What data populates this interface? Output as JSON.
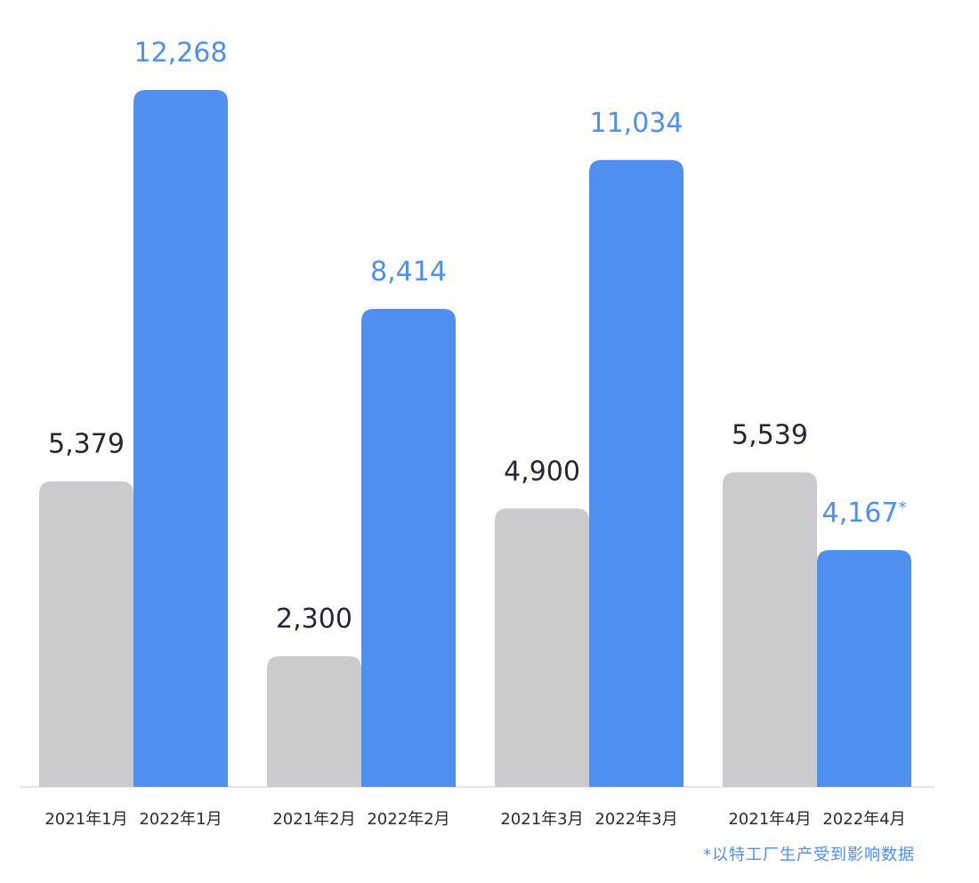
{
  "colors": {
    "series_2021": "#cbcbcd",
    "series_2022": "#4f8ff0",
    "value_2021": "#262636",
    "value_2022": "#4f8ff0",
    "axis_label": "#2a2a3a",
    "baseline": "#e6e6ea"
  },
  "chart_data": {
    "type": "bar",
    "groups": [
      {
        "bars": [
          {
            "category": "2021年1月",
            "value": 5379,
            "label": "5,379"
          },
          {
            "category": "2022年1月",
            "value": 12268,
            "label": "12,268"
          }
        ]
      },
      {
        "bars": [
          {
            "category": "2021年2月",
            "value": 2300,
            "label": "2,300"
          },
          {
            "category": "2022年2月",
            "value": 8414,
            "label": "8,414"
          }
        ]
      },
      {
        "bars": [
          {
            "category": "2021年3月",
            "value": 4900,
            "label": "4,900"
          },
          {
            "category": "2022年3月",
            "value": 11034,
            "label": "11,034"
          }
        ]
      },
      {
        "bars": [
          {
            "category": "2021年4月",
            "value": 5539,
            "label": "5,539"
          },
          {
            "category": "2022年4月",
            "value": 4167,
            "label": "4,167",
            "marker": "*"
          }
        ]
      }
    ],
    "ylim": [
      0,
      12268
    ],
    "grid": false,
    "footnote": "*以特工厂生产受到影响数据"
  }
}
